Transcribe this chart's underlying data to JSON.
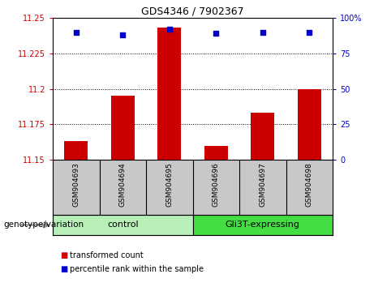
{
  "title": "GDS4346 / 7902367",
  "samples": [
    "GSM904693",
    "GSM904694",
    "GSM904695",
    "GSM904696",
    "GSM904697",
    "GSM904698"
  ],
  "bar_values": [
    11.163,
    11.195,
    11.243,
    11.16,
    11.183,
    11.2
  ],
  "percentile_values": [
    90,
    88,
    92,
    89,
    90,
    90
  ],
  "ylim_left": [
    11.15,
    11.25
  ],
  "ylim_right": [
    0,
    100
  ],
  "yticks_left": [
    11.15,
    11.175,
    11.2,
    11.225,
    11.25
  ],
  "ytick_labels_left": [
    "11.15",
    "11.175",
    "11.2",
    "11.225",
    "11.25"
  ],
  "yticks_right": [
    0,
    25,
    50,
    75,
    100
  ],
  "ytick_labels_right": [
    "0",
    "25",
    "50",
    "75",
    "100%"
  ],
  "bar_color": "#cc0000",
  "dot_color": "#0000cc",
  "groups": [
    {
      "label": "control",
      "indices": [
        0,
        1,
        2
      ],
      "color": "#90ee90"
    },
    {
      "label": "Gli3T-expressing",
      "indices": [
        3,
        4,
        5
      ],
      "color": "#00cc00"
    }
  ],
  "genotype_label": "genotype/variation",
  "legend_items": [
    {
      "color": "#cc0000",
      "label": "transformed count"
    },
    {
      "color": "#0000cc",
      "label": "percentile rank within the sample"
    }
  ],
  "bar_bottom": 11.15,
  "grid_ticks": [
    11.175,
    11.2,
    11.225
  ],
  "control_color": "#b8f0b8",
  "gli3t_color": "#44dd44"
}
